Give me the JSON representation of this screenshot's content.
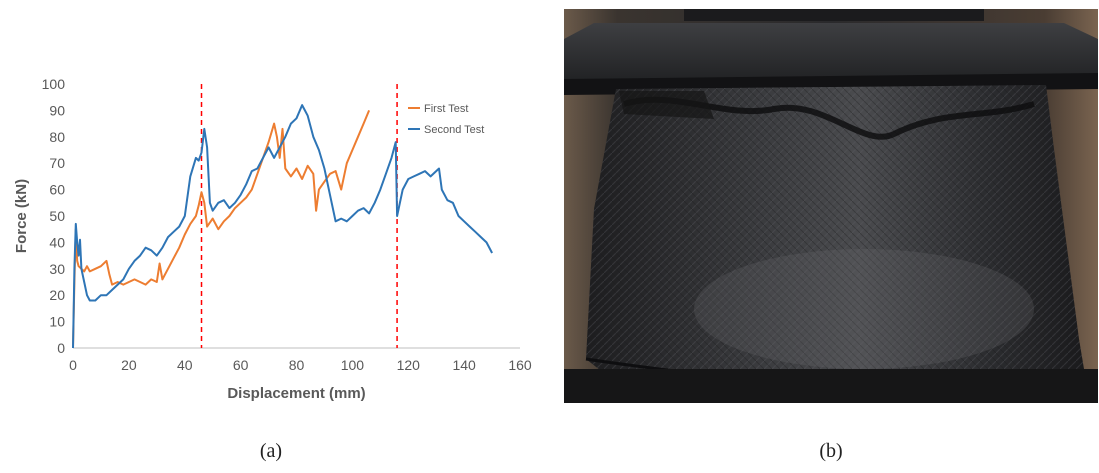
{
  "chart_data": {
    "type": "line",
    "xlabel": "Displacement (mm)",
    "ylabel": "Force (kN)",
    "xlim": [
      0,
      160
    ],
    "ylim": [
      0,
      100
    ],
    "xticks": [
      0,
      20,
      40,
      60,
      80,
      100,
      120,
      140,
      160
    ],
    "yticks": [
      0,
      10,
      20,
      30,
      40,
      50,
      60,
      70,
      80,
      90,
      100
    ],
    "grid": false,
    "legend_position": "top-right",
    "vlines": [
      46,
      116
    ],
    "series": [
      {
        "name": "First Test",
        "color": "#ED7D31",
        "x": [
          0,
          0.5,
          1,
          1.5,
          2,
          3,
          4,
          5,
          6,
          8,
          10,
          12,
          13,
          14,
          16,
          18,
          20,
          22,
          24,
          26,
          28,
          30,
          31,
          32,
          34,
          36,
          38,
          40,
          42,
          44,
          45,
          46,
          47,
          48,
          50,
          52,
          54,
          56,
          58,
          60,
          62,
          64,
          66,
          68,
          70,
          72,
          73,
          74,
          75,
          76,
          78,
          80,
          82,
          84,
          86,
          87,
          88,
          90,
          92,
          94,
          96,
          98,
          100,
          102,
          104,
          106
        ],
        "values": [
          0,
          25,
          45,
          33,
          31,
          30,
          29,
          31,
          29,
          30,
          31,
          33,
          28,
          24,
          25,
          24,
          25,
          26,
          25,
          24,
          26,
          25,
          32,
          26,
          30,
          34,
          38,
          43,
          47,
          50,
          54,
          59,
          55,
          46,
          49,
          45,
          48,
          50,
          53,
          55,
          57,
          60,
          66,
          72,
          78,
          85,
          80,
          72,
          83,
          68,
          65,
          68,
          64,
          69,
          66,
          52,
          60,
          63,
          66,
          67,
          60,
          70,
          75,
          80,
          85,
          90
        ]
      },
      {
        "name": "Second Test",
        "color": "#2E75B6",
        "x": [
          0,
          0.5,
          1,
          1.5,
          2,
          2.5,
          3,
          4,
          5,
          6,
          8,
          10,
          12,
          14,
          16,
          18,
          20,
          22,
          24,
          26,
          28,
          30,
          32,
          34,
          36,
          38,
          40,
          42,
          44,
          45,
          46,
          47,
          48,
          49,
          50,
          52,
          54,
          56,
          58,
          60,
          62,
          64,
          66,
          68,
          70,
          72,
          74,
          76,
          78,
          80,
          82,
          83,
          84,
          86,
          88,
          90,
          92,
          94,
          96,
          98,
          100,
          102,
          104,
          106,
          108,
          110,
          112,
          114,
          115,
          115.5,
          116,
          118,
          120,
          122,
          124,
          126,
          128,
          130,
          131,
          132,
          134,
          136,
          138,
          140,
          142,
          144,
          146,
          148,
          150
        ],
        "values": [
          0,
          30,
          47,
          40,
          35,
          41,
          30,
          25,
          20,
          18,
          18,
          20,
          20,
          22,
          24,
          26,
          30,
          33,
          35,
          38,
          37,
          35,
          38,
          42,
          44,
          46,
          50,
          65,
          72,
          71,
          74,
          83,
          76,
          55,
          52,
          55,
          56,
          53,
          55,
          58,
          62,
          67,
          68,
          72,
          76,
          72,
          76,
          80,
          85,
          87,
          92,
          90,
          88,
          80,
          75,
          68,
          58,
          48,
          49,
          48,
          50,
          52,
          53,
          51,
          55,
          60,
          66,
          72,
          76,
          78,
          50,
          60,
          64,
          65,
          66,
          67,
          65,
          67,
          68,
          60,
          56,
          55,
          50,
          48,
          46,
          44,
          42,
          40,
          36
        ]
      }
    ]
  },
  "figure": {
    "caption_a": "(a)",
    "caption_b": "(b)"
  }
}
